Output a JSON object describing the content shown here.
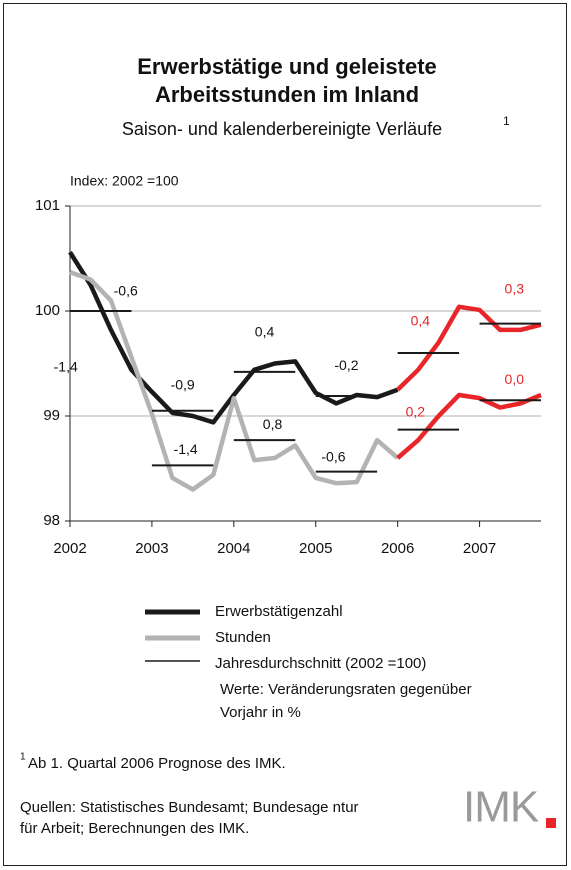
{
  "chart_data": {
    "type": "line",
    "title": [
      "Erwerbstätige und geleistete",
      "Arbeitsstunden im Inland"
    ],
    "subtitle": "Saison- und kalenderbereinigte Verläufe",
    "subtitle_note": "1",
    "y_label": "Index: 2002 =100",
    "x": [
      2002,
      2002.25,
      2002.5,
      2002.75,
      2003,
      2003.25,
      2003.5,
      2003.75,
      2004,
      2004.25,
      2004.5,
      2004.75,
      2005,
      2005.25,
      2005.5,
      2005.75,
      2006,
      2006.25,
      2006.5,
      2006.75,
      2007,
      2007.25,
      2007.5,
      2007.75
    ],
    "series": [
      {
        "name": "Erwerbstätigenzahl",
        "color": "#1a1a1a",
        "values": [
          100.56,
          100.25,
          99.82,
          99.44,
          99.23,
          99.03,
          99.0,
          98.94,
          99.2,
          99.44,
          99.5,
          99.52,
          99.22,
          99.12,
          99.2,
          99.18,
          99.25,
          99.44,
          99.7,
          100.04,
          100.01,
          99.82,
          99.82,
          99.87
        ]
      },
      {
        "name": "Stunden",
        "color": "#b3b3b3",
        "values": [
          100.37,
          100.3,
          100.1,
          99.56,
          99.02,
          98.41,
          98.3,
          98.44,
          99.17,
          98.58,
          98.6,
          98.72,
          98.41,
          98.36,
          98.37,
          98.77,
          98.6,
          98.77,
          99.0,
          99.2,
          99.17,
          99.08,
          99.12,
          99.2
        ]
      }
    ],
    "forecast_from": 2006,
    "forecast_color": "#e8262a",
    "averages": {
      "name": "Jahresdurchschnitt (2002 =100)",
      "note": [
        "Werte: Veränderungsraten gegenüber",
        "Vorjahr in %"
      ],
      "color": "#1a1a1a",
      "x": [
        2002,
        2003,
        2004,
        2005,
        2006,
        2007
      ],
      "series": [
        {
          "values": [
            100,
            99.05,
            99.42,
            99.19,
            99.6,
            99.88
          ],
          "changes": [
            -0.6,
            -0.9,
            0.4,
            -0.2,
            0.4,
            0.3
          ],
          "change_labels": [
            "-0,6",
            "-0,9",
            "0,4",
            "-0,2",
            "0,4",
            "0,3"
          ]
        },
        {
          "values": [
            100,
            98.53,
            98.77,
            98.47,
            98.87,
            99.15
          ],
          "changes": [
            -1.4,
            -1.4,
            0.8,
            -0.6,
            0.2,
            0.0
          ],
          "change_labels": [
            "-1,4",
            "-1,4",
            "0,8",
            "-0,6",
            "0,2",
            "0,0"
          ]
        }
      ]
    },
    "xlim": [
      2002,
      2007.75
    ],
    "xticks": [
      2002,
      2003,
      2004,
      2005,
      2006,
      2007
    ],
    "ylim": [
      98,
      101
    ],
    "yticks": [
      98,
      99,
      100,
      101
    ],
    "grid": true,
    "footnote_marker": "1",
    "footnote": "Ab 1. Quartal 2006 Prognose des IMK.",
    "sources": [
      "Quellen: Statistisches Bundesamt; Bundesage ntur",
      "für Arbeit; Berechnungen des IMK."
    ],
    "logo": "IMK"
  }
}
